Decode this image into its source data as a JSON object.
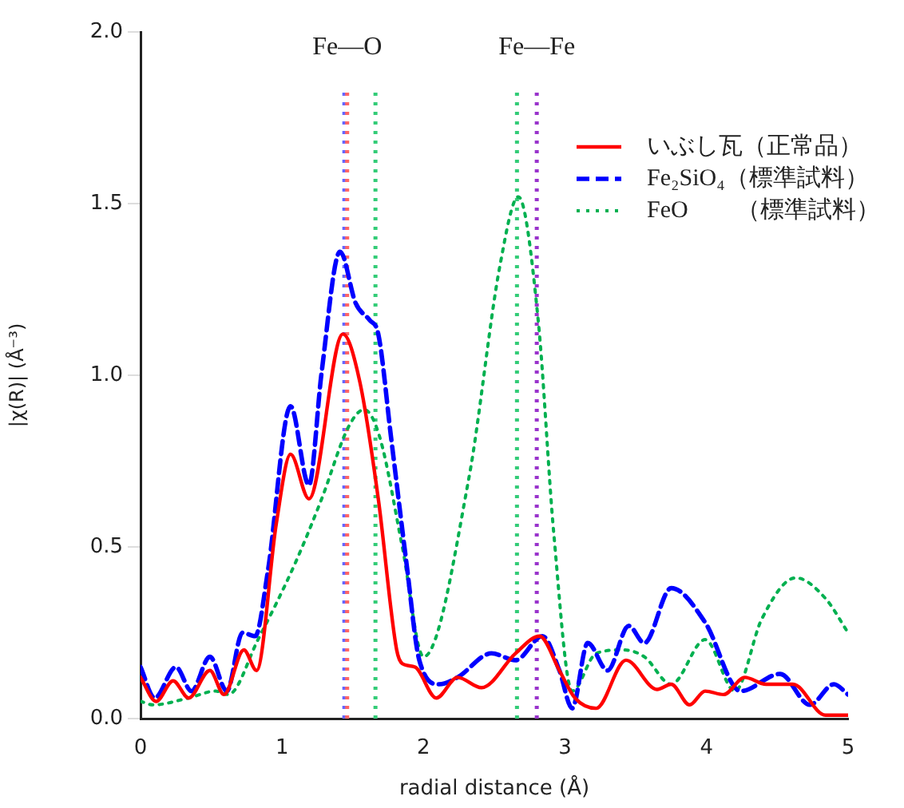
{
  "chart_data": {
    "type": "line",
    "xlabel": "radial distance (Å)",
    "ylabel": "|χ(R)| (Å⁻³)",
    "xlim": [
      0,
      5
    ],
    "xticks": [
      0,
      1,
      2,
      3,
      4,
      5
    ],
    "ylim": [
      0,
      2
    ],
    "yticks": [
      {
        "value": 0,
        "label": "0.0"
      },
      {
        "value": 0.5,
        "label": "0.5"
      },
      {
        "value": 1,
        "label": "1.0"
      },
      {
        "value": 1.5,
        "label": "1.5"
      },
      {
        "value": 2,
        "label": "2.0"
      }
    ],
    "grid": false,
    "legend": "top right",
    "marker": "none",
    "series": [
      {
        "name": "いぶし瓦（正常品）",
        "color": "#ff0000",
        "line_style": "solid",
        "x": [
          0,
          0.11,
          0.23,
          0.34,
          0.49,
          0.59,
          0.73,
          0.82,
          0.96,
          1.06,
          1.19,
          1.43,
          1.55,
          1.68,
          1.81,
          1.85,
          1.94,
          2.09,
          2.24,
          2.41,
          2.65,
          2.82,
          2.96,
          3.07,
          3.22,
          3.43,
          3.65,
          3.75,
          3.88,
          3.99,
          4.12,
          4.27,
          4.42,
          4.61,
          4.84,
          5.0
        ],
        "values": [
          0.12,
          0.05,
          0.11,
          0.06,
          0.14,
          0.07,
          0.2,
          0.14,
          0.57,
          0.77,
          0.64,
          1.12,
          0.98,
          0.64,
          0.2,
          0.16,
          0.15,
          0.06,
          0.12,
          0.09,
          0.19,
          0.24,
          0.14,
          0.06,
          0.03,
          0.17,
          0.085,
          0.1,
          0.04,
          0.08,
          0.07,
          0.12,
          0.1,
          0.1,
          0.01,
          0.01
        ]
      },
      {
        "name": "Fe₂SiO₄（標準試料）",
        "color": "#0000ff",
        "line_style": "dashed",
        "x": [
          0,
          0.1,
          0.25,
          0.36,
          0.49,
          0.61,
          0.72,
          0.81,
          0.9,
          1.06,
          1.19,
          1.28,
          1.41,
          1.52,
          1.62,
          1.68,
          1.77,
          1.88,
          1.97,
          2.11,
          2.24,
          2.48,
          2.65,
          2.84,
          2.96,
          3.05,
          3.16,
          3.3,
          3.45,
          3.56,
          3.75,
          3.99,
          4.24,
          4.52,
          4.73,
          4.9,
          5.0
        ],
        "values": [
          0.15,
          0.06,
          0.15,
          0.08,
          0.18,
          0.08,
          0.25,
          0.24,
          0.43,
          0.91,
          0.68,
          1.01,
          1.36,
          1.21,
          1.16,
          1.12,
          0.82,
          0.45,
          0.17,
          0.1,
          0.12,
          0.19,
          0.17,
          0.24,
          0.14,
          0.03,
          0.22,
          0.14,
          0.27,
          0.22,
          0.38,
          0.28,
          0.08,
          0.13,
          0.04,
          0.1,
          0.07
        ]
      },
      {
        "name": "FeO　　（標準試料）",
        "color": "#00b050",
        "line_style": "dotted",
        "x": [
          0,
          0.09,
          0.34,
          0.53,
          0.62,
          0.83,
          1.09,
          1.28,
          1.47,
          1.58,
          1.69,
          1.85,
          2.0,
          2.32,
          2.54,
          2.67,
          2.81,
          2.92,
          3.05,
          3.22,
          3.41,
          3.56,
          3.75,
          3.99,
          4.2,
          4.39,
          4.63,
          4.84,
          5.0
        ],
        "values": [
          0.05,
          0.04,
          0.06,
          0.08,
          0.07,
          0.23,
          0.45,
          0.64,
          0.85,
          0.9,
          0.82,
          0.5,
          0.18,
          0.7,
          1.32,
          1.52,
          1.16,
          0.54,
          0.08,
          0.19,
          0.2,
          0.18,
          0.1,
          0.23,
          0.08,
          0.29,
          0.41,
          0.35,
          0.25
        ]
      }
    ],
    "ref_lines": [
      {
        "axis": "x",
        "value": 1.44,
        "color": "#6666ff",
        "line_style": "dotted"
      },
      {
        "axis": "x",
        "value": 1.46,
        "color": "#ff6666",
        "line_style": "dotted",
        "label": "Fe—O"
      },
      {
        "axis": "x",
        "value": 1.66,
        "color": "#33cc77",
        "line_style": "dotted"
      },
      {
        "axis": "x",
        "value": 2.66,
        "color": "#33cc77",
        "line_style": "dotted"
      },
      {
        "axis": "x",
        "value": 2.8,
        "color": "#9933cc",
        "line_style": "dotted",
        "label": "Fe—Fe"
      }
    ]
  }
}
